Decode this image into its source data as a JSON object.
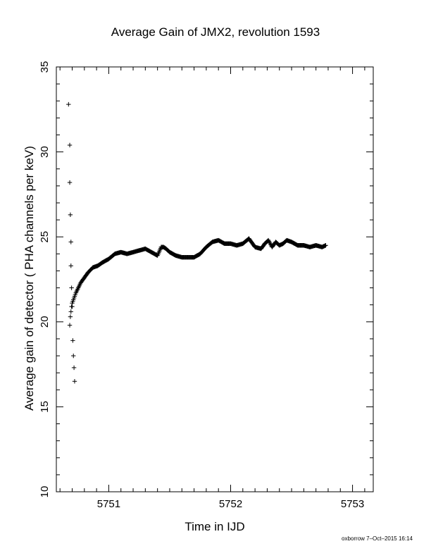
{
  "chart_data": {
    "type": "scatter",
    "title": "Average Gain of JMX2, revolution 1593",
    "xlabel": "Time in IJD",
    "ylabel": "Average gain of detector ( PHA channels per keV)",
    "xlim": [
      5750.57,
      5753.17
    ],
    "ylim": [
      10,
      35
    ],
    "xticks": [
      5751,
      5752,
      5753
    ],
    "xtick_labels": [
      "5751",
      "5752",
      "5753"
    ],
    "yticks": [
      10,
      15,
      20,
      25,
      30,
      35
    ],
    "ytick_labels": [
      "10",
      "15",
      "20",
      "25",
      "30",
      "35"
    ],
    "marker": "+",
    "grid": false,
    "legend": "none",
    "series": [
      {
        "x": [
          5750.67,
          5750.68,
          5750.68,
          5750.685,
          5750.69,
          5750.69,
          5750.695,
          5750.7,
          5750.705,
          5750.71,
          5750.715,
          5750.72,
          5750.68,
          5750.685,
          5750.69,
          5750.695,
          5750.7,
          5750.71,
          5750.72,
          5750.73,
          5750.75,
          5750.77,
          5750.8,
          5750.83,
          5750.87,
          5750.91,
          5750.95,
          5751.0,
          5751.05,
          5751.1,
          5751.15,
          5751.2,
          5751.25,
          5751.3,
          5751.35,
          5751.4,
          5751.43,
          5751.45,
          5751.47,
          5751.5,
          5751.55,
          5751.6,
          5751.65,
          5751.7,
          5751.75,
          5751.8,
          5751.85,
          5751.9,
          5751.95,
          5752.0,
          5752.05,
          5752.1,
          5752.15,
          5752.2,
          5752.25,
          5752.28,
          5752.31,
          5752.34,
          5752.37,
          5752.4,
          5752.43,
          5752.46,
          5752.5,
          5752.55,
          5752.6,
          5752.65,
          5752.7,
          5752.75,
          5752.78
        ],
        "y": [
          32.8,
          30.4,
          28.2,
          26.3,
          24.7,
          23.3,
          22.0,
          20.9,
          18.9,
          18.0,
          17.3,
          16.5,
          19.8,
          20.3,
          20.6,
          20.9,
          21.1,
          21.3,
          21.5,
          21.7,
          22.0,
          22.3,
          22.6,
          22.9,
          23.2,
          23.3,
          23.5,
          23.7,
          24.0,
          24.1,
          24.0,
          24.1,
          24.2,
          24.3,
          24.1,
          23.9,
          24.4,
          24.4,
          24.3,
          24.1,
          23.9,
          23.8,
          23.8,
          23.8,
          24.0,
          24.4,
          24.7,
          24.8,
          24.6,
          24.6,
          24.5,
          24.6,
          24.9,
          24.4,
          24.3,
          24.6,
          24.8,
          24.4,
          24.7,
          24.5,
          24.6,
          24.8,
          24.7,
          24.5,
          24.5,
          24.4,
          24.5,
          24.4,
          24.5
        ]
      }
    ]
  },
  "footer": "oxborrow  7–Oct–2015 16:14"
}
